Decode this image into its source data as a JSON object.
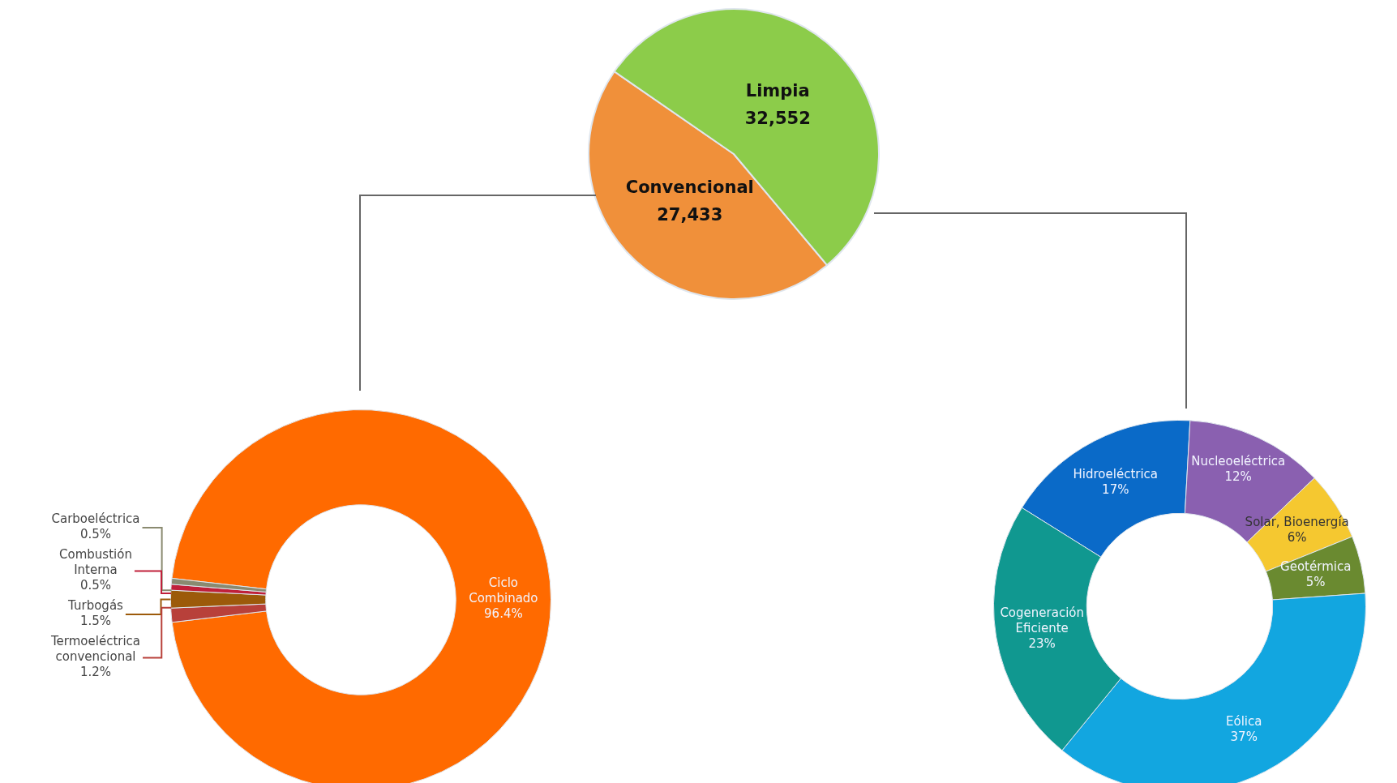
{
  "chart_data": [
    {
      "type": "pie",
      "categories": [
        "Convencional",
        "Limpia"
      ],
      "values": [
        27433,
        32552
      ],
      "colors": [
        "#f0903a",
        "#8ccc4a"
      ],
      "value_labels": [
        "27,433",
        "32,552"
      ]
    },
    {
      "type": "donut",
      "categories": [
        "Ciclo Combinado",
        "Termoeléctrica convencional",
        "Turbogás",
        "Combustión Interna",
        "Carboeléctrica"
      ],
      "values": [
        96.4,
        1.2,
        1.5,
        0.5,
        0.5
      ],
      "colors": [
        "#ff6a00",
        "#b8403a",
        "#9c5a0a",
        "#c0203a",
        "#8a8a70"
      ],
      "value_labels": [
        "96.4%",
        "1.2%",
        "1.5%",
        "0.5%",
        "0.5%"
      ]
    },
    {
      "type": "donut",
      "categories": [
        "Hidroeléctrica",
        "Nucleoeléctrica",
        "Solar, Bioenergía",
        "Geotérmica",
        "Eólica",
        "Cogeneración Eficiente"
      ],
      "values": [
        17,
        12,
        6,
        5,
        37,
        23
      ],
      "colors": [
        "#0a6ac8",
        "#8a60b0",
        "#f5c830",
        "#6a8a30",
        "#12a6e0",
        "#109890"
      ],
      "value_labels": [
        "17%",
        "12%",
        "6%",
        "5%",
        "37%",
        "23%"
      ]
    }
  ]
}
